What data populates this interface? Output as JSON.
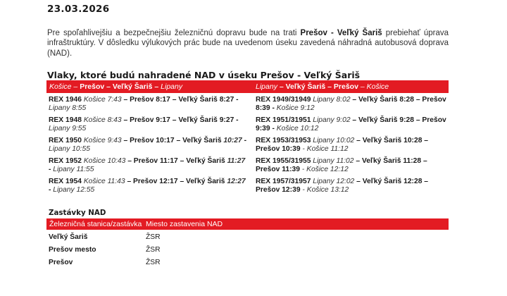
{
  "date": "23.03.2026",
  "intro": {
    "before": "Pre spoľahlivejšiu a bezpečnejšiu železničnú dopravu bude na trati ",
    "route": "Prešov - Veľký Šariš",
    "after": " prebiehať úprava infraštruktúry. V dôsledku výlukových prác bude na uvedenom úseku zavedená náhradná autobusová doprava (NAD)."
  },
  "trains": {
    "heading": "Vlaky, ktoré budú nahradené NAD v úseku Prešov - Veľký Šariš",
    "accent_color": "#e31b23",
    "columns": [
      {
        "header": [
          {
            "t": "Košice – ",
            "s": "i"
          },
          {
            "t": "Prešov – Veľký Šariš – ",
            "s": "b"
          },
          {
            "t": "Lipany",
            "s": "i"
          }
        ],
        "entries": [
          [
            {
              "t": "REX 1946 ",
              "s": "b"
            },
            {
              "t": "Košice 7:43",
              "s": "i"
            },
            {
              "t": " – Prešov 8:17 – Veľký Šariš 8:27 - ",
              "s": "b"
            },
            {
              "t": "Lipany 8:55",
              "s": "i"
            }
          ],
          [
            {
              "t": "REX 1948 ",
              "s": "b"
            },
            {
              "t": "Košice 8:43",
              "s": "i"
            },
            {
              "t": " – Prešov 9:17 – Veľký Šariš 9:27 - ",
              "s": "b"
            },
            {
              "t": "Lipany 9:55",
              "s": "i"
            }
          ],
          [
            {
              "t": "REX 1950 ",
              "s": "b"
            },
            {
              "t": "Košice 9:43",
              "s": "i"
            },
            {
              "t": " – Prešov 10:17 – Veľký Šariš ",
              "s": "b"
            },
            {
              "t": "10:27",
              "s": "bi"
            },
            {
              "t": " - ",
              "s": "b"
            },
            {
              "t": "Lipany 10:55",
              "s": "i"
            }
          ],
          [
            {
              "t": "REX 1952 ",
              "s": "b"
            },
            {
              "t": "Košice 10:43",
              "s": "i"
            },
            {
              "t": " – Prešov 11:17 – Veľký Šariš ",
              "s": "b"
            },
            {
              "t": "11:27",
              "s": "bi"
            },
            {
              "t": " - ",
              "s": "b"
            },
            {
              "t": "Lipany 11:55",
              "s": "i"
            }
          ],
          [
            {
              "t": "REX 1954 ",
              "s": "b"
            },
            {
              "t": "Košice 11:43",
              "s": "i"
            },
            {
              "t": " – Prešov 12:17 – Veľký Šariš ",
              "s": "b"
            },
            {
              "t": "12:27",
              "s": "bi"
            },
            {
              "t": " - ",
              "s": "b"
            },
            {
              "t": "Lipany 12:55",
              "s": "i"
            }
          ]
        ]
      },
      {
        "header": [
          {
            "t": "Lipany",
            "s": "i"
          },
          {
            "t": " – Veľký Šariš – Prešov",
            "s": "b"
          },
          {
            "t": " – Košice",
            "s": "i"
          }
        ],
        "entries": [
          [
            {
              "t": "REX 1949/31949 ",
              "s": "b"
            },
            {
              "t": "Lipany 8:02",
              "s": "i"
            },
            {
              "t": " – Veľký Šariš  8:28 – Prešov 8:39 - ",
              "s": "b"
            },
            {
              "t": "Košice 9:12",
              "s": "i"
            }
          ],
          [
            {
              "t": "REX 1951/31951 ",
              "s": "b"
            },
            {
              "t": "Lipany 9:02",
              "s": "i"
            },
            {
              "t": " – Veľký Šariš  9:28 – Prešov 9:39 - ",
              "s": "b"
            },
            {
              "t": "Košice 10:12",
              "s": "i"
            }
          ],
          [
            {
              "t": "REX 1953/31953 ",
              "s": "b"
            },
            {
              "t": "Lipany 10:02",
              "s": "i"
            },
            {
              "t": " – Veľký Šariš 10:28 – Prešov 10:39",
              "s": "b"
            },
            {
              "t": " - Košice 11:12",
              "s": "i"
            }
          ],
          [
            {
              "t": "REX 1955/31955 ",
              "s": "b"
            },
            {
              "t": "Lipany 11:02",
              "s": "i"
            },
            {
              "t": " – Veľký Šariš 11:28 – Prešov 11:39",
              "s": "b"
            },
            {
              "t": " - Košice 12:12",
              "s": "i"
            }
          ],
          [
            {
              "t": "REX 1957/31957 ",
              "s": "b"
            },
            {
              "t": "Lipany 12:02",
              "s": "i"
            },
            {
              "t": " – Veľký Šariš 12:28 – Prešov 12:39",
              "s": "b"
            },
            {
              "t": " - Košice 13:12",
              "s": "i"
            }
          ]
        ]
      }
    ]
  },
  "stops": {
    "heading": "Zastávky NAD",
    "columns": [
      "Železničná stanica/zastávka",
      "Miesto zastavenia NAD"
    ],
    "rows": [
      {
        "station": "Veľký Šariš",
        "place": "ŽSR"
      },
      {
        "station": "Prešov mesto",
        "place": "ŽSR"
      },
      {
        "station": "Prešov",
        "place": "ŽSR"
      }
    ]
  }
}
